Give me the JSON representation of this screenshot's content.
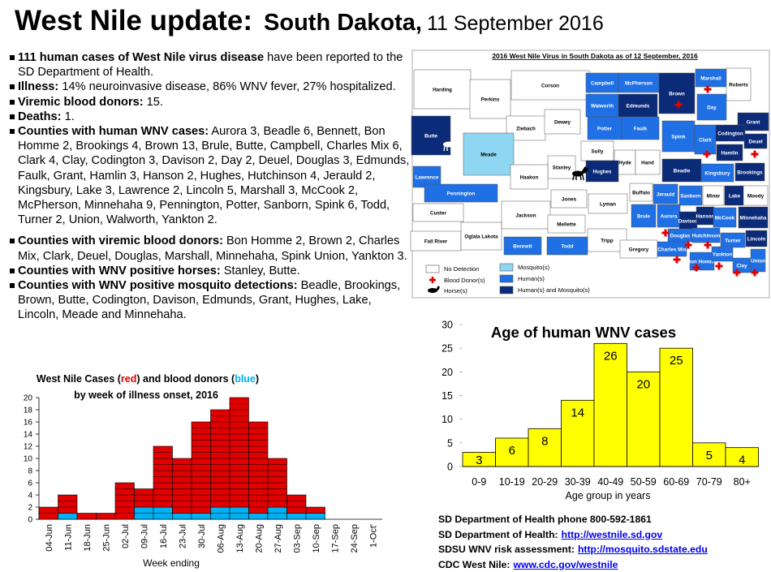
{
  "header": {
    "title": "West Nile update:",
    "state": "South Dakota,",
    "date": "11 September 2016"
  },
  "bullets": [
    {
      "bold": "111 human cases of West Nile virus disease",
      "text": " have been reported to the SD Department of Health."
    },
    {
      "bold": "Illness:",
      "text": " 14% neuroinvasive disease, 86% WNV fever, 27% hospitalized."
    },
    {
      "bold": "Viremic blood donors:",
      "text": " 15."
    },
    {
      "bold": "Deaths:",
      "text": " 1."
    },
    {
      "bold": "Counties with human WNV cases:",
      "text": " Aurora 3, Beadle 6, Bennett, Bon Homme 2, Brookings 4, Brown 13, Brule, Butte, Campbell, Charles Mix 6, Clark 4, Clay, Codington 3, Davison 2, Day 2, Deuel, Douglas 3, Edmunds, Faulk, Grant, Hamlin 3, Hanson 2, Hughes, Hutchinson 4, Jerauld 2, Kingsbury, Lake 3, Lawrence 2, Lincoln 5, Marshall 3, McCook 2, McPherson, Minnehaha 9, Pennington, Potter, Sanborn, Spink 6, Todd, Turner 2, Union, Walworth, Yankton 2."
    },
    {
      "bold": "Counties with viremic blood donors:",
      "text": " Bon Homme 2, Brown 2, Charles Mix, Clark, Deuel, Douglas, Marshall, Minnehaha, Spink Union, Yankton 3."
    },
    {
      "bold": "Counties with WNV positive horses:",
      "text": " Stanley, Butte."
    },
    {
      "bold": "Counties with WNV positive mosquito detections:",
      "text": " Beadle, Brookings, Brown, Butte, Codington, Davison, Edmunds, Grant, Hughes, Lake, Lincoln, Meade and Minnehaha."
    }
  ],
  "map": {
    "title": "2016 West Nile Virus in South Dakota as of 12 September, 2016",
    "counties": [
      {
        "name": "Harding",
        "color": "#ffffff"
      },
      {
        "name": "Perkins",
        "color": "#ffffff"
      },
      {
        "name": "Corson",
        "color": "#ffffff"
      },
      {
        "name": "Campbell",
        "color": "#1f6fe5"
      },
      {
        "name": "McPherson",
        "color": "#1f6fe5"
      },
      {
        "name": "Brown",
        "color": "#0b2a78"
      },
      {
        "name": "Marshall",
        "color": "#1f6fe5"
      },
      {
        "name": "Roberts",
        "color": "#ffffff"
      },
      {
        "name": "Day",
        "color": "#1f6fe5"
      },
      {
        "name": "Walworth",
        "color": "#1f6fe5"
      },
      {
        "name": "Edmunds",
        "color": "#0b2a78"
      },
      {
        "name": "Grant",
        "color": "#0b2a78"
      },
      {
        "name": "Ziebach",
        "color": "#ffffff"
      },
      {
        "name": "Dewey",
        "color": "#ffffff"
      },
      {
        "name": "Potter",
        "color": "#1f6fe5"
      },
      {
        "name": "Faulk",
        "color": "#1f6fe5"
      },
      {
        "name": "Spink",
        "color": "#1f6fe5"
      },
      {
        "name": "Clark",
        "color": "#1f6fe5"
      },
      {
        "name": "Codington",
        "color": "#0b2a78"
      },
      {
        "name": "Deuel",
        "color": "#0b2a78"
      },
      {
        "name": "Butte",
        "color": "#0b2a78"
      },
      {
        "name": "Meade",
        "color": "#8fd6f2"
      },
      {
        "name": "Hamlin",
        "color": "#0b2a78"
      },
      {
        "name": "Sully",
        "color": "#ffffff"
      },
      {
        "name": "Hyde",
        "color": "#ffffff"
      },
      {
        "name": "Hand",
        "color": "#ffffff"
      },
      {
        "name": "Beadle",
        "color": "#0b2a78"
      },
      {
        "name": "Kingsbury",
        "color": "#1f6fe5"
      },
      {
        "name": "Brookings",
        "color": "#0b2a78"
      },
      {
        "name": "Lawrence",
        "color": "#1f6fe5"
      },
      {
        "name": "Stanley",
        "color": "#ffffff"
      },
      {
        "name": "Hughes",
        "color": "#0b2a78"
      },
      {
        "name": "Haakon",
        "color": "#ffffff"
      },
      {
        "name": "Pennington",
        "color": "#1f6fe5"
      },
      {
        "name": "Buffalo",
        "color": "#ffffff"
      },
      {
        "name": "Jerauld",
        "color": "#1f6fe5"
      },
      {
        "name": "Sanborn",
        "color": "#1f6fe5"
      },
      {
        "name": "Miner",
        "color": "#ffffff"
      },
      {
        "name": "Lake",
        "color": "#0b2a78"
      },
      {
        "name": "Moody",
        "color": "#ffffff"
      },
      {
        "name": "Jones",
        "color": "#ffffff"
      },
      {
        "name": "Lyman",
        "color": "#ffffff"
      },
      {
        "name": "Custer",
        "color": "#ffffff"
      },
      {
        "name": "Jackson",
        "color": "#ffffff"
      },
      {
        "name": "Brule",
        "color": "#1f6fe5"
      },
      {
        "name": "Aurora",
        "color": "#1f6fe5"
      },
      {
        "name": "Davison",
        "color": "#0b2a78"
      },
      {
        "name": "Hanson",
        "color": "#0b2a78"
      },
      {
        "name": "McCook",
        "color": "#1f6fe5"
      },
      {
        "name": "Minnehaha",
        "color": "#0b2a78"
      },
      {
        "name": "Mellette",
        "color": "#ffffff"
      },
      {
        "name": "Douglas",
        "color": "#1f6fe5"
      },
      {
        "name": "Hutchinson",
        "color": "#1f6fe5"
      },
      {
        "name": "Turner",
        "color": "#1f6fe5"
      },
      {
        "name": "Fall River",
        "color": "#ffffff"
      },
      {
        "name": "Oglala Lakota",
        "color": "#ffffff"
      },
      {
        "name": "Tripp",
        "color": "#ffffff"
      },
      {
        "name": "Bennett",
        "color": "#1f6fe5"
      },
      {
        "name": "Todd",
        "color": "#1f6fe5"
      },
      {
        "name": "Gregory",
        "color": "#ffffff"
      },
      {
        "name": "Charles Mix",
        "color": "#1f6fe5"
      },
      {
        "name": "Bon Homme",
        "color": "#1f6fe5"
      },
      {
        "name": "Yankton",
        "color": "#1f6fe5"
      },
      {
        "name": "Clay",
        "color": "#1f6fe5"
      },
      {
        "name": "Union",
        "color": "#1f6fe5"
      },
      {
        "name": "Lincoln",
        "color": "#0b2a78"
      }
    ],
    "legend": [
      {
        "label": "No Detection",
        "color": "#ffffff"
      },
      {
        "label": "Mosquito(s)",
        "color": "#8fd6f2"
      },
      {
        "label": "Blood Donor(s)",
        "color": "#e00000"
      },
      {
        "label": "Human(s)",
        "color": "#1f6fe5"
      },
      {
        "label": "Horse(s)",
        "color": "#000000"
      },
      {
        "label": "Human(s) and Mosquito(s)",
        "color": "#0b2a78"
      }
    ]
  },
  "chart_data": [
    {
      "type": "stacked-bar",
      "title_parts": [
        {
          "text": "West Nile Cases ("
        },
        {
          "text": "red",
          "color": "#e00000"
        },
        {
          "text": ") and blood donors ("
        },
        {
          "text": "blue",
          "color": "#00b0f0"
        },
        {
          "text": ")"
        }
      ],
      "subtitle": "by week of illness onset, 2016",
      "x_label": "Week ending",
      "categories": [
        "04-Jun",
        "11-Jun",
        "18-Jun",
        "25-Jun",
        "02-Jul",
        "09-Jul",
        "16-Jul",
        "23-Jul",
        "30-Jul",
        "06-Aug",
        "13-Aug",
        "20-Aug",
        "27-Aug",
        "03-Sep",
        "10-Sep",
        "17-Sep",
        "24-Sep",
        "1-Oct'"
      ],
      "series": [
        {
          "color": "#00b0f0",
          "values": [
            0,
            1,
            0,
            0,
            0,
            2,
            2,
            1,
            1,
            2,
            2,
            1,
            2,
            1,
            1,
            0,
            0,
            0
          ]
        },
        {
          "color": "#e00000",
          "values": [
            2,
            3,
            1,
            1,
            6,
            3,
            10,
            9,
            15,
            16,
            18,
            15,
            8,
            3,
            1,
            0,
            0,
            0
          ]
        }
      ],
      "ylim": [
        0,
        20
      ],
      "yticks": [
        0,
        2,
        4,
        6,
        8,
        10,
        12,
        14,
        16,
        18,
        20
      ]
    },
    {
      "type": "bar",
      "title": "Age of human WNV cases",
      "x_label": "Age group in years",
      "categories": [
        "0-9",
        "10-19",
        "20-29",
        "30-39",
        "40-49",
        "50-59",
        "60-69",
        "70-79",
        "80+"
      ],
      "values": [
        3,
        6,
        8,
        14,
        26,
        20,
        25,
        5,
        4
      ],
      "color": "#ffff00",
      "ylim": [
        0,
        30
      ],
      "yticks": [
        0,
        5,
        10,
        15,
        20,
        25,
        30
      ]
    }
  ],
  "contacts": [
    {
      "label": "SD Department of Health phone 800-592-1861"
    },
    {
      "label": "SD Department of Health:",
      "link": "http://westnile.sd.gov"
    },
    {
      "label": "SDSU WNV risk assessment:",
      "link": "http://mosquito.sdstate.edu"
    },
    {
      "label": "CDC West Nile:",
      "link": "www.cdc.gov/westnile"
    }
  ]
}
